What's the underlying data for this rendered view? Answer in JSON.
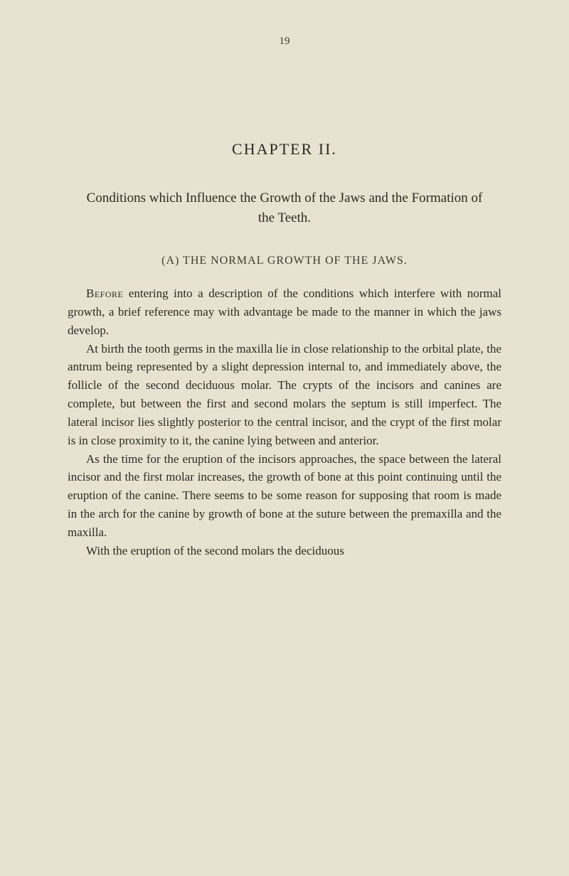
{
  "page_number": "19",
  "chapter_title": "CHAPTER II.",
  "section_title": "Conditions which Influence the Growth of the Jaws and the Formation of the Teeth.",
  "subsection_title": "(A) THE NORMAL GROWTH OF THE JAWS.",
  "paragraphs": {
    "p1_lead": "Before",
    "p1_rest": " entering into a description of the conditions which interfere with normal growth, a brief reference may with advantage be made to the manner in which the jaws develop.",
    "p2": "At birth the tooth germs in the maxilla lie in close relationship to the orbital plate, the antrum being represented by a slight depression internal to, and immediately above, the follicle of the second deciduous molar. The crypts of the incisors and canines are complete, but between the first and second molars the septum is still imperfect. The lateral incisor lies slightly posterior to the central incisor, and the crypt of the first molar is in close proximity to it, the canine lying between and anterior.",
    "p3": "As the time for the eruption of the incisors approaches, the space between the lateral incisor and the first molar increases, the growth of bone at this point continuing until the eruption of the canine. There seems to be some reason for supposing that room is made in the arch for the canine by growth of bone at the suture between the premaxilla and the maxilla.",
    "p4": "With the eruption of the second molars the deciduous"
  },
  "colors": {
    "background": "#e8e2d0",
    "text": "#2a2a26",
    "text_light": "#3a3a35"
  },
  "typography": {
    "body_fontsize": 17,
    "chapter_fontsize": 22,
    "section_fontsize": 19,
    "subsection_fontsize": 16,
    "line_height": 1.52
  }
}
